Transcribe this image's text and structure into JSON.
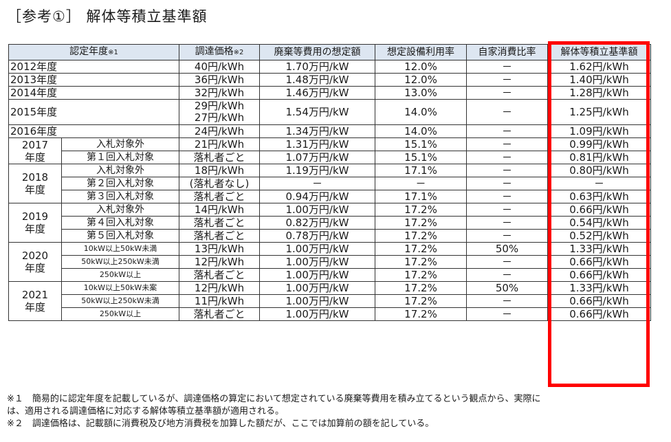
{
  "title": "［参考①］ 解体等積立基準額",
  "headers": {
    "year": "認定年度",
    "year_note": "※1",
    "price": "調達価格",
    "price_note": "※2",
    "disposal": "廃棄等費用の想定額",
    "capacity": "想定設備利用率",
    "selfuse": "自家消費比率",
    "standard": "解体等積立基準額"
  },
  "rows": [
    {
      "year": "2012年度",
      "price": "40円/kWh",
      "disposal": "1.70万円/kW",
      "capacity": "12.0%",
      "selfuse": "－",
      "standard": "1.62円/kWh"
    },
    {
      "year": "2013年度",
      "price": "36円/kWh",
      "disposal": "1.48万円/kW",
      "capacity": "12.0%",
      "selfuse": "－",
      "standard": "1.40円/kWh"
    },
    {
      "year": "2014年度",
      "price": "32円/kWh",
      "disposal": "1.46万円/kW",
      "capacity": "13.0%",
      "selfuse": "－",
      "standard": "1.28円/kWh"
    },
    {
      "year": "2015年度",
      "price": "29円/kWh",
      "price2": "27円/kWh",
      "disposal": "1.54万円/kW",
      "capacity": "14.0%",
      "selfuse": "－",
      "standard": "1.25円/kWh"
    },
    {
      "year": "2016年度",
      "price": "24円/kWh",
      "disposal": "1.34万円/kW",
      "capacity": "14.0%",
      "selfuse": "－",
      "standard": "1.09円/kWh"
    },
    {
      "year": "2017",
      "year2": "年度",
      "sub": "入札対象外",
      "price": "21円/kWh",
      "disposal": "1.31万円/kW",
      "capacity": "15.1%",
      "selfuse": "－",
      "standard": "0.99円/kWh"
    },
    {
      "sub": "第１回入札対象",
      "price": "落札者ごと",
      "disposal": "1.07万円/kW",
      "capacity": "15.1%",
      "selfuse": "－",
      "standard": "0.81円/kWh"
    },
    {
      "year": "2018",
      "year2": "年度",
      "sub": "入札対象外",
      "price": "18円/kWh",
      "disposal": "1.19万円/kW",
      "capacity": "17.1%",
      "selfuse": "－",
      "standard": "0.80円/kWh"
    },
    {
      "sub": "第２回入札対象",
      "price": "(落札者なし)",
      "disposal": "－",
      "capacity": "－",
      "selfuse": "－",
      "standard": "－"
    },
    {
      "sub": "第３回入札対象",
      "price": "落札者ごと",
      "disposal": "0.94万円/kW",
      "capacity": "17.1%",
      "selfuse": "－",
      "standard": "0.63円/kWh"
    },
    {
      "year": "2019",
      "year2": "年度",
      "sub": "入札対象外",
      "price": "14円/kWh",
      "disposal": "1.00万円/kW",
      "capacity": "17.2%",
      "selfuse": "－",
      "standard": "0.66円/kWh"
    },
    {
      "sub": "第４回入札対象",
      "price": "落札者ごと",
      "disposal": "0.82万円/kW",
      "capacity": "17.2%",
      "selfuse": "－",
      "standard": "0.54円/kWh"
    },
    {
      "sub": "第５回入札対象",
      "price": "落札者ごと",
      "disposal": "0.78万円/kW",
      "capacity": "17.2%",
      "selfuse": "－",
      "standard": "0.52円/kWh"
    },
    {
      "year": "2020",
      "year2": "年度",
      "sub": "10kW以上50kW未満",
      "price": "13円/kWh",
      "disposal": "1.00万円/kW",
      "capacity": "17.2%",
      "selfuse": "50%",
      "standard": "1.33円/kWh"
    },
    {
      "sub": "50kW以上250kW未満",
      "price": "12円/kWh",
      "disposal": "1.00万円/kW",
      "capacity": "17.2%",
      "selfuse": "－",
      "standard": "0.66円/kWh"
    },
    {
      "sub": "250kW以上",
      "price": "落札者ごと",
      "disposal": "1.00万円/kW",
      "capacity": "17.2%",
      "selfuse": "－",
      "standard": "0.66円/kWh"
    },
    {
      "year": "2021",
      "year2": "年度",
      "sub": "10kW以上50kW未案",
      "price": "12円/kWh",
      "disposal": "1.00万円/kW",
      "capacity": "17.2%",
      "selfuse": "50%",
      "standard": "1.33円/kWh"
    },
    {
      "sub": "50kW以上250kW未満",
      "price": "11円/kWh",
      "disposal": "1.00万円/kW",
      "capacity": "17.2%",
      "selfuse": "－",
      "standard": "0.66円/kWh"
    },
    {
      "sub": "250kW以上",
      "price": "落札者ごと",
      "disposal": "1.00万円/kW",
      "capacity": "17.2%",
      "selfuse": "－",
      "standard": "0.66円/kWh"
    }
  ],
  "footnotes": {
    "note1_line1": "※１　簡易的に認定年度を記載しているが、調達価格の算定において想定されている廃棄等費用を積み立てるという観点から、実際に",
    "note1_line2": "は、適用される調達価格に対応する解体等積立基準額が適用される。",
    "note2": "※２　調達価格は、記載額に消費税及び地方消費税を加算した額だが、ここでは加算前の額を記している。"
  },
  "highlight_color": "#ff0000"
}
